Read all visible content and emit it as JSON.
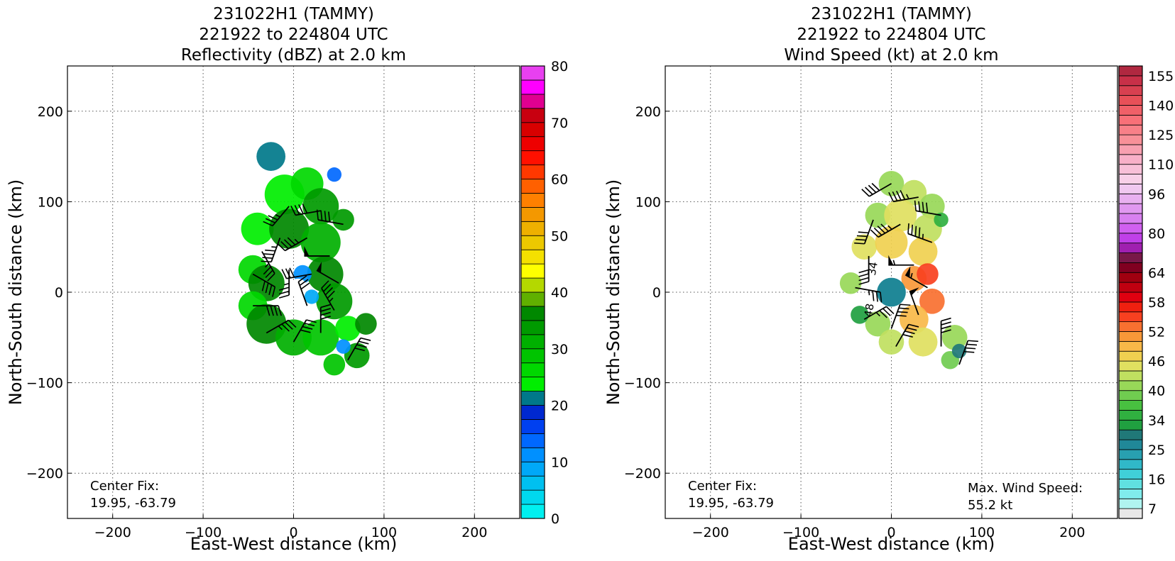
{
  "chart_data": [
    {
      "type": "heatmap",
      "title_lines": [
        "231022H1 (TAMMY)",
        "221922 to 224804 UTC",
        "Reflectivity (dBZ) at 2.0 km"
      ],
      "xlabel": "East-West distance (km)",
      "ylabel": "North-South distance (km)",
      "xlim": [
        -250,
        250
      ],
      "ylim": [
        -250,
        250
      ],
      "xticks": [
        -200,
        -100,
        0,
        100,
        200
      ],
      "yticks": [
        -200,
        -100,
        0,
        100,
        200
      ],
      "grid": true,
      "annotation_left": [
        "Center Fix:",
        "19.95, -63.79"
      ],
      "colorbar": {
        "min": 0,
        "max": 80,
        "step": 2.5,
        "tick_values": [
          0,
          10,
          20,
          30,
          40,
          50,
          60,
          70,
          80
        ],
        "colors": [
          "#00f0f0",
          "#00d8ee",
          "#00c0f0",
          "#00a8f8",
          "#0090ff",
          "#0068ff",
          "#0040f0",
          "#0028d0",
          "#00788a",
          "#00ee00",
          "#00d800",
          "#00c400",
          "#00b000",
          "#009a00",
          "#008800",
          "#60b000",
          "#b4d800",
          "#ffff00",
          "#f4e000",
          "#ecc800",
          "#eeb000",
          "#f49800",
          "#ff8000",
          "#ff6000",
          "#ff3800",
          "#ff1000",
          "#ee0000",
          "#d80000",
          "#c80010",
          "#e00090",
          "#ff00ff",
          "#e840f0",
          "#c040e0",
          "#a050d0",
          "#805098",
          "#502050",
          "#000000"
        ]
      },
      "rain_cells": [
        {
          "x": -25,
          "y": 150,
          "r": 16,
          "v": 22
        },
        {
          "x": -10,
          "y": 108,
          "r": 22,
          "v": 24
        },
        {
          "x": 15,
          "y": 120,
          "r": 18,
          "v": 26
        },
        {
          "x": 30,
          "y": 95,
          "r": 20,
          "v": 33
        },
        {
          "x": 55,
          "y": 80,
          "r": 12,
          "v": 34
        },
        {
          "x": -40,
          "y": 70,
          "r": 18,
          "v": 23
        },
        {
          "x": -5,
          "y": 70,
          "r": 22,
          "v": 35
        },
        {
          "x": 30,
          "y": 55,
          "r": 22,
          "v": 30
        },
        {
          "x": -45,
          "y": 25,
          "r": 16,
          "v": 27
        },
        {
          "x": -30,
          "y": 10,
          "r": 20,
          "v": 36
        },
        {
          "x": 35,
          "y": 20,
          "r": 20,
          "v": 37
        },
        {
          "x": 45,
          "y": -10,
          "r": 20,
          "v": 33
        },
        {
          "x": -45,
          "y": -15,
          "r": 16,
          "v": 25
        },
        {
          "x": -30,
          "y": -35,
          "r": 22,
          "v": 35
        },
        {
          "x": 0,
          "y": -50,
          "r": 20,
          "v": 31
        },
        {
          "x": 30,
          "y": -50,
          "r": 20,
          "v": 28
        },
        {
          "x": 60,
          "y": -40,
          "r": 14,
          "v": 24
        },
        {
          "x": 80,
          "y": -35,
          "r": 12,
          "v": 36
        },
        {
          "x": 70,
          "y": -70,
          "r": 14,
          "v": 34
        },
        {
          "x": 45,
          "y": -80,
          "r": 12,
          "v": 29
        },
        {
          "x": 10,
          "y": 20,
          "r": 10,
          "v": 12
        },
        {
          "x": 20,
          "y": -5,
          "r": 8,
          "v": 8
        },
        {
          "x": 55,
          "y": -60,
          "r": 8,
          "v": 11
        },
        {
          "x": 45,
          "y": 130,
          "r": 8,
          "v": 13
        }
      ],
      "eye": {
        "x": 5,
        "y": 5,
        "r": 10
      },
      "barbs": [
        {
          "x": -15,
          "y": 60,
          "dir": 200,
          "kt": 45
        },
        {
          "x": 15,
          "y": 60,
          "dir": 240,
          "kt": 45
        },
        {
          "x": 40,
          "y": 40,
          "dir": 270,
          "kt": 50
        },
        {
          "x": 50,
          "y": 10,
          "dir": 300,
          "kt": 50
        },
        {
          "x": 45,
          "y": -20,
          "dir": 330,
          "kt": 45
        },
        {
          "x": 30,
          "y": -45,
          "dir": 0,
          "kt": 40
        },
        {
          "x": 0,
          "y": -55,
          "dir": 30,
          "kt": 40
        },
        {
          "x": -30,
          "y": -45,
          "dir": 60,
          "kt": 35
        },
        {
          "x": -45,
          "y": -15,
          "dir": 90,
          "kt": 40
        },
        {
          "x": -45,
          "y": 20,
          "dir": 120,
          "kt": 40
        },
        {
          "x": -35,
          "y": 45,
          "dir": 150,
          "kt": 35
        },
        {
          "x": -5,
          "y": 95,
          "dir": 220,
          "kt": 35
        },
        {
          "x": 30,
          "y": 90,
          "dir": 260,
          "kt": 40
        },
        {
          "x": 55,
          "y": 75,
          "dir": 280,
          "kt": 40
        },
        {
          "x": -5,
          "y": 25,
          "dir": 180,
          "kt": 35
        },
        {
          "x": 20,
          "y": 20,
          "dir": 260,
          "kt": 30
        },
        {
          "x": 15,
          "y": -15,
          "dir": 340,
          "kt": 30
        },
        {
          "x": 60,
          "y": -75,
          "dir": 30,
          "kt": 40
        }
      ]
    },
    {
      "type": "heatmap",
      "title_lines": [
        "231022H1 (TAMMY)",
        "221922 to 224804 UTC",
        "Wind Speed (kt) at 2.0 km"
      ],
      "xlabel": "East-West distance (km)",
      "ylabel": "North-South distance (km)",
      "xlim": [
        -250,
        250
      ],
      "ylim": [
        -250,
        250
      ],
      "xticks": [
        -200,
        -100,
        0,
        100,
        200
      ],
      "yticks": [
        -200,
        -100,
        0,
        100,
        200
      ],
      "grid": true,
      "annotation_left": [
        "Center Fix:",
        "19.95, -63.79"
      ],
      "annotation_right": [
        "Max. Wind Speed:",
        "55.2 kt"
      ],
      "colorbar": {
        "levels": [
          4,
          7,
          10,
          13,
          16,
          19,
          22,
          25,
          28,
          31,
          34,
          36,
          38,
          40,
          42,
          44,
          46,
          48,
          50,
          52,
          54,
          56,
          58,
          60,
          62,
          64,
          68,
          72,
          76,
          80,
          84,
          88,
          92,
          96,
          100,
          105,
          110,
          115,
          120,
          125,
          130,
          135,
          140,
          145,
          150,
          155,
          160
        ],
        "tick_values": [
          7,
          16,
          25,
          34,
          40,
          46,
          52,
          58,
          64,
          80,
          96,
          110,
          125,
          140,
          155
        ],
        "colors": [
          "#e8e8e8",
          "#b0f4f0",
          "#80ecec",
          "#60e0e0",
          "#40d0d8",
          "#30b8c8",
          "#28a0b0",
          "#208898",
          "#207878",
          "#20a040",
          "#30b040",
          "#48c040",
          "#70cc50",
          "#98d858",
          "#c0e060",
          "#e0e060",
          "#f0d050",
          "#f8b848",
          "#f89838",
          "#f87030",
          "#f84020",
          "#f02010",
          "#e00010",
          "#c00010",
          "#a00010",
          "#800020",
          "#781848",
          "#a020b0",
          "#c040e8",
          "#d060f0",
          "#d880f0",
          "#e098f0",
          "#e8b0f0",
          "#f0c8f0",
          "#f8d0e8",
          "#f8c0d8",
          "#f8b0c8",
          "#f8a0b0",
          "#f89098",
          "#f88088",
          "#f87078",
          "#f06068",
          "#e85058",
          "#d84050",
          "#c83048",
          "#b02840",
          "#901838"
        ]
      },
      "wind_cells": [
        {
          "x": 0,
          "y": 120,
          "r": 14,
          "v": 41
        },
        {
          "x": 25,
          "y": 110,
          "r": 14,
          "v": 42
        },
        {
          "x": 45,
          "y": 95,
          "r": 14,
          "v": 40
        },
        {
          "x": -15,
          "y": 85,
          "r": 14,
          "v": 41
        },
        {
          "x": 10,
          "y": 85,
          "r": 18,
          "v": 44
        },
        {
          "x": 40,
          "y": 70,
          "r": 16,
          "v": 42
        },
        {
          "x": -30,
          "y": 50,
          "r": 14,
          "v": 45
        },
        {
          "x": 0,
          "y": 55,
          "r": 18,
          "v": 47
        },
        {
          "x": 35,
          "y": 45,
          "r": 16,
          "v": 46
        },
        {
          "x": -45,
          "y": 10,
          "r": 12,
          "v": 40
        },
        {
          "x": 25,
          "y": 15,
          "r": 14,
          "v": 50
        },
        {
          "x": 40,
          "y": 20,
          "r": 12,
          "v": 55
        },
        {
          "x": 45,
          "y": -10,
          "r": 14,
          "v": 52
        },
        {
          "x": 25,
          "y": -30,
          "r": 16,
          "v": 49
        },
        {
          "x": -15,
          "y": -35,
          "r": 14,
          "v": 40
        },
        {
          "x": 0,
          "y": -55,
          "r": 14,
          "v": 42
        },
        {
          "x": 35,
          "y": -55,
          "r": 16,
          "v": 44
        },
        {
          "x": 70,
          "y": -50,
          "r": 14,
          "v": 40
        },
        {
          "x": 65,
          "y": -75,
          "r": 10,
          "v": 38
        },
        {
          "x": -35,
          "y": -25,
          "r": 10,
          "v": 31
        },
        {
          "x": 55,
          "y": 80,
          "r": 8,
          "v": 34
        },
        {
          "x": 75,
          "y": -65,
          "r": 8,
          "v": 30
        }
      ],
      "core": {
        "x": 0,
        "y": 0,
        "r": 16,
        "v": 25
      },
      "barbs": [
        {
          "x": 0,
          "y": 120,
          "dir": 240,
          "kt": 40
        },
        {
          "x": 30,
          "y": 105,
          "dir": 260,
          "kt": 45
        },
        {
          "x": 55,
          "y": 85,
          "dir": 280,
          "kt": 40
        },
        {
          "x": -20,
          "y": 80,
          "dir": 200,
          "kt": 40
        },
        {
          "x": 10,
          "y": 75,
          "dir": 240,
          "kt": 45
        },
        {
          "x": 45,
          "y": 55,
          "dir": 290,
          "kt": 45
        },
        {
          "x": -25,
          "y": 40,
          "dir": 180,
          "kt": 40
        },
        {
          "x": 25,
          "y": 30,
          "dir": 270,
          "kt": 55
        },
        {
          "x": 40,
          "y": 5,
          "dir": 300,
          "kt": 55
        },
        {
          "x": 30,
          "y": -25,
          "dir": 340,
          "kt": 50
        },
        {
          "x": 0,
          "y": -40,
          "dir": 20,
          "kt": 40
        },
        {
          "x": -30,
          "y": -30,
          "dir": 60,
          "kt": 35
        },
        {
          "x": -40,
          "y": 5,
          "dir": 100,
          "kt": 35
        },
        {
          "x": 5,
          "y": -60,
          "dir": 30,
          "kt": 40
        },
        {
          "x": 55,
          "y": -60,
          "dir": 0,
          "kt": 40
        },
        {
          "x": 75,
          "y": -80,
          "dir": 20,
          "kt": 40
        }
      ],
      "contour_labels": [
        "34",
        "48"
      ]
    }
  ]
}
